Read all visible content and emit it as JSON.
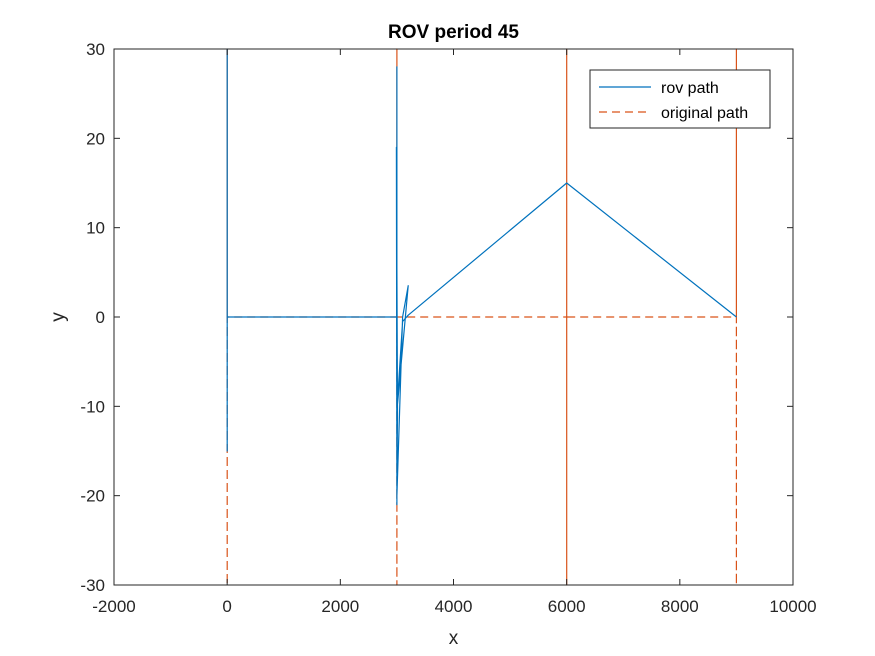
{
  "chart_data": {
    "type": "line",
    "title": "ROV period 45",
    "xlabel": "x",
    "ylabel": "y",
    "xlim": [
      -2000,
      10000
    ],
    "ylim": [
      -30,
      30
    ],
    "xticks": [
      -2000,
      0,
      2000,
      4000,
      6000,
      8000,
      10000
    ],
    "yticks": [
      -30,
      -20,
      -10,
      0,
      10,
      20,
      30
    ],
    "xtick_labels": [
      "-2000",
      "0",
      "2000",
      "4000",
      "6000",
      "8000",
      "10000"
    ],
    "ytick_labels": [
      "-30",
      "-20",
      "-10",
      "0",
      "10",
      "20",
      "30"
    ],
    "grid": false,
    "legend_position": "top-right",
    "series": [
      {
        "name": "original path",
        "style": "dashed",
        "color": "#D95319",
        "x": [
          0,
          0,
          0,
          0,
          3000,
          3000,
          3000,
          3000,
          3000,
          6000,
          6000,
          6000,
          6000,
          6000,
          9000,
          9000,
          9000,
          9000,
          9000
        ],
        "y": [
          0,
          30,
          -30,
          0,
          0,
          30,
          -30,
          30,
          0,
          0,
          30,
          -30,
          30,
          0,
          0,
          30,
          -30,
          30,
          0
        ]
      },
      {
        "name": "rov path",
        "style": "solid",
        "color": "#0072BD",
        "x": [
          0,
          0,
          0,
          0,
          0,
          3000,
          3000,
          3000,
          2990,
          3010,
          3000,
          3100,
          3200,
          3000,
          3100,
          3200,
          6000,
          9000
        ],
        "y": [
          0,
          15,
          -15,
          30,
          0,
          0,
          28,
          -21,
          19,
          -10.5,
          -20,
          0,
          3.5,
          -10.5,
          -0.5,
          0.2,
          15,
          0
        ]
      }
    ]
  }
}
